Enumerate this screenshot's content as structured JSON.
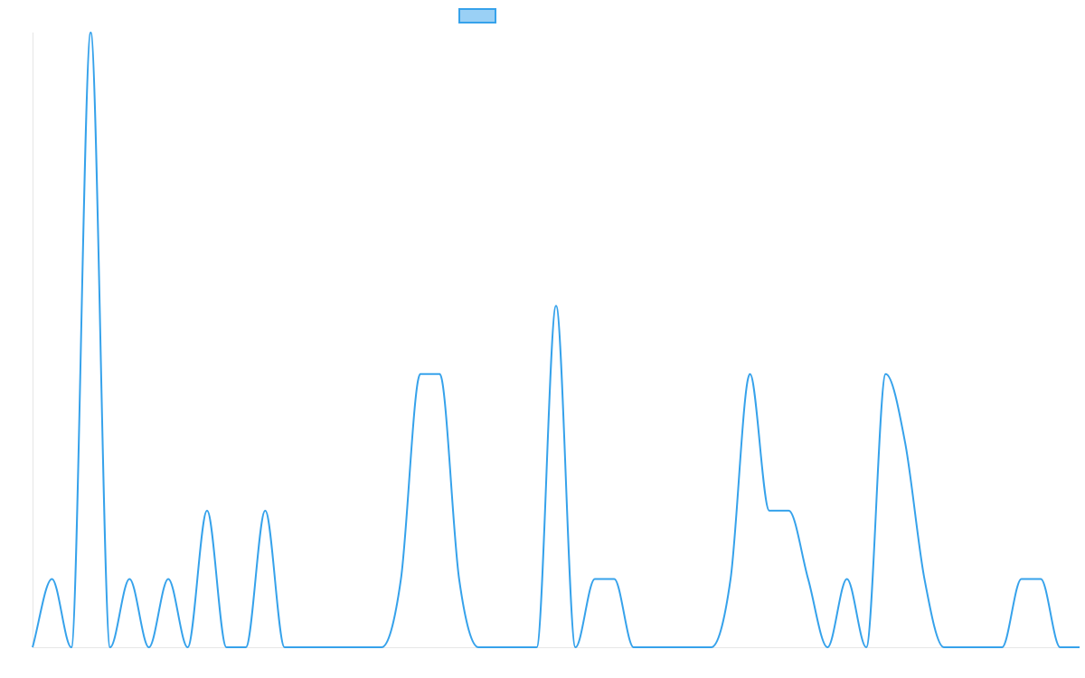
{
  "chart_data": {
    "type": "line",
    "title": "",
    "xlabel": "",
    "ylabel": "",
    "legend": {
      "position": "top",
      "label": ""
    },
    "grid": false,
    "ylim": [
      0,
      9
    ],
    "smooth": true,
    "series": [
      {
        "color": "#36a2eb",
        "fill": "#9ad0f5",
        "values": [
          0,
          1,
          0,
          9,
          0,
          1,
          0,
          1,
          0,
          2,
          0,
          0,
          2,
          0,
          0,
          0,
          0,
          0,
          0,
          1,
          4,
          4,
          1,
          0,
          0,
          0,
          0,
          5,
          0,
          1,
          1,
          0,
          0,
          0,
          0,
          0,
          1,
          4,
          2,
          2,
          1,
          0,
          1,
          0,
          4,
          3,
          1,
          0,
          0,
          0,
          0,
          1,
          1,
          0,
          0
        ]
      }
    ]
  }
}
